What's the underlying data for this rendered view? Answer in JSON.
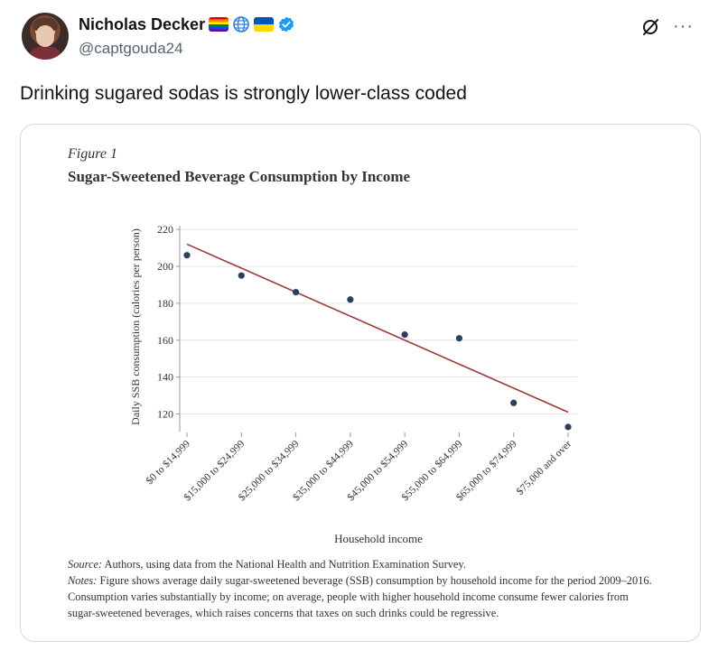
{
  "tweet": {
    "display_name": "Nicholas Decker",
    "handle": "@captgouda24",
    "text": "Drinking sugared sodas is strongly lower-class coded",
    "more_label": "···"
  },
  "figure": {
    "label": "Figure 1",
    "title": "Sugar-Sweetened Beverage Consumption by Income",
    "source_label": "Source:",
    "source_text": " Authors, using data from the National Health and Nutrition Examination Survey.",
    "notes_label": "Notes:",
    "notes_text": " Figure shows average daily sugar-sweetened beverage (SSB) consumption by household income for the period 2009–2016. Consumption varies substantially by income; on average, people with higher household income consume fewer calories from sugar-sweetened beverages, which raises concerns that taxes on such drinks could be regressive."
  },
  "chart_data": {
    "type": "scatter",
    "xlabel": "Household income",
    "ylabel": "Daily SSB consumption (calories per person)",
    "categories": [
      "$0 to $14,999",
      "$15,000 to $24,999",
      "$25,000 to $34,999",
      "$35,000 to $44,999",
      "$45,000 to $54,999",
      "$55,000 to $64,999",
      "$65,000 to $74,999",
      "$75,000 and over"
    ],
    "values": [
      206,
      195,
      186,
      182,
      163,
      161,
      126,
      113
    ],
    "trendline": {
      "start": 212,
      "end": 121
    },
    "yticks": [
      120,
      140,
      160,
      180,
      200,
      220
    ],
    "ylim": [
      110,
      222
    ],
    "grid": true,
    "colors": {
      "points": "#2e3f5c",
      "trendline": "#9b3a3a",
      "grid": "#e3e3e3"
    }
  }
}
